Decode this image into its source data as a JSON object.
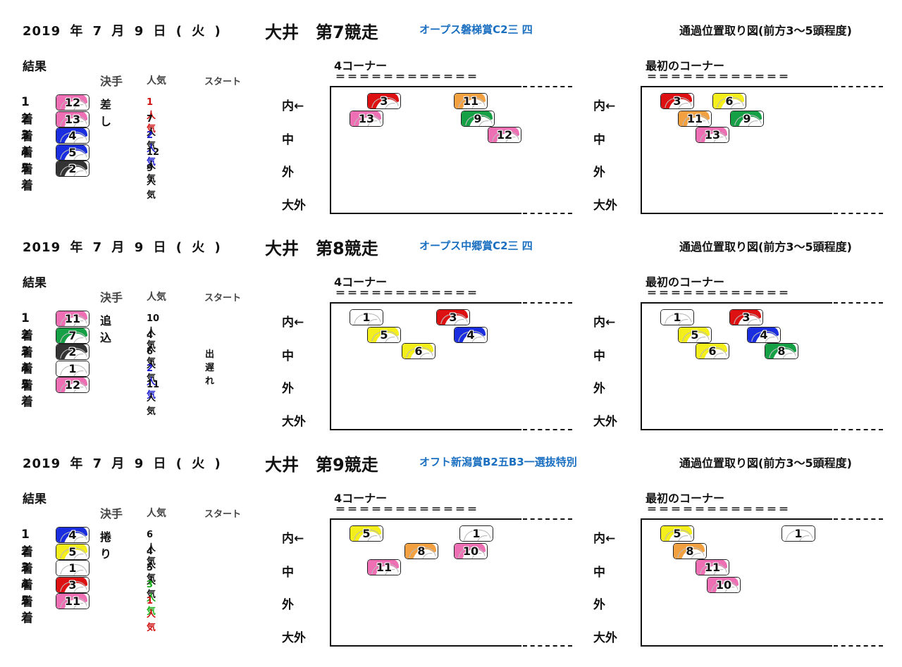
{
  "labels": {
    "result": "結果",
    "col_kimete": "決手",
    "col_ninki": "人気",
    "col_start": "スタート",
    "pass_title": "通過位置取り図(前方3～5頭程度)",
    "corner4": "4コーナー",
    "corner_first": "最初のコーナー",
    "equals": "＝＝＝＝＝＝＝＝＝＝＝＝",
    "lanes": [
      "内←",
      "中",
      "外",
      "大外"
    ]
  },
  "colors": {
    "pink": "#ee6fb4",
    "red": "#dd1111",
    "blue": "#1a2ee0",
    "yellow": "#f4ee1a",
    "green": "#16a045",
    "orange": "#f2a040",
    "black": "#333333",
    "white": "#ffffff",
    "ninki_red": "#d01010",
    "ninki_blue": "#1a1ad0",
    "ninki_green": "#18b018",
    "race_name": "#1a6fc0"
  },
  "races": [
    {
      "date": "2019 年 7 月 9 日 ( 火 )",
      "venue": "大井　第7競走",
      "name": "オープス磐梯賞C2三 四",
      "results": [
        {
          "rank": "1着",
          "num": "12",
          "color": "pink",
          "kimete": "差し",
          "ninki": "1人気",
          "ninki_color": "ninki_red",
          "start": ""
        },
        {
          "rank": "2着",
          "num": "13",
          "color": "pink",
          "kimete": "",
          "ninki": "7人気",
          "ninki_color": "",
          "start": ""
        },
        {
          "rank": "3着",
          "num": "4",
          "color": "blue",
          "kimete": "",
          "ninki": "2人気",
          "ninki_color": "ninki_blue",
          "start": ""
        },
        {
          "rank": "4着",
          "num": "5",
          "color": "blue",
          "kimete": "",
          "ninki": "12人気",
          "ninki_color": "",
          "start": ""
        },
        {
          "rank": "5着",
          "num": "2",
          "color": "black",
          "kimete": "",
          "ninki": "9人気",
          "ninki_color": "",
          "start": ""
        }
      ],
      "corner4": [
        {
          "num": "3",
          "color": "red",
          "along": 51,
          "lane": 0
        },
        {
          "num": "11",
          "color": "orange",
          "along": 174,
          "lane": 0
        },
        {
          "num": "13",
          "color": "pink",
          "along": 26,
          "lane": 1
        },
        {
          "num": "9",
          "color": "green",
          "along": 184,
          "lane": 1
        },
        {
          "num": "12",
          "color": "pink",
          "along": 222,
          "lane": 2
        }
      ],
      "corner_first": [
        {
          "num": "3",
          "color": "red",
          "along": 26,
          "lane": 0
        },
        {
          "num": "6",
          "color": "yellow",
          "along": 100,
          "lane": 0
        },
        {
          "num": "11",
          "color": "orange",
          "along": 51,
          "lane": 1
        },
        {
          "num": "9",
          "color": "green",
          "along": 125,
          "lane": 1
        },
        {
          "num": "13",
          "color": "pink",
          "along": 76,
          "lane": 2
        }
      ]
    },
    {
      "date": "2019 年 7 月 9 日 ( 火 )",
      "venue": "大井　第8競走",
      "name": "オープス中郷賞C2三 四",
      "results": [
        {
          "rank": "1着",
          "num": "11",
          "color": "pink",
          "kimete": "追込",
          "ninki": "10人気",
          "ninki_color": "",
          "start": ""
        },
        {
          "rank": "2着",
          "num": "7",
          "color": "green",
          "kimete": "",
          "ninki": "4人気",
          "ninki_color": "",
          "start": ""
        },
        {
          "rank": "3着",
          "num": "2",
          "color": "black",
          "kimete": "",
          "ninki": "6人気",
          "ninki_color": "",
          "start": "出遅れ"
        },
        {
          "rank": "4着",
          "num": "1",
          "color": "white",
          "kimete": "",
          "ninki": "2人気",
          "ninki_color": "ninki_blue",
          "start": ""
        },
        {
          "rank": "5着",
          "num": "12",
          "color": "pink",
          "kimete": "",
          "ninki": "11人気",
          "ninki_color": "",
          "start": ""
        }
      ],
      "corner4": [
        {
          "num": "1",
          "color": "white",
          "along": 26,
          "lane": 0
        },
        {
          "num": "3",
          "color": "red",
          "along": 149,
          "lane": 0
        },
        {
          "num": "5",
          "color": "yellow",
          "along": 51,
          "lane": 1
        },
        {
          "num": "4",
          "color": "blue",
          "along": 174,
          "lane": 1
        },
        {
          "num": "6",
          "color": "yellow",
          "along": 100,
          "lane": 2
        }
      ],
      "corner_first": [
        {
          "num": "1",
          "color": "white",
          "along": 26,
          "lane": 0
        },
        {
          "num": "3",
          "color": "red",
          "along": 124,
          "lane": 0
        },
        {
          "num": "5",
          "color": "yellow",
          "along": 51,
          "lane": 1
        },
        {
          "num": "4",
          "color": "blue",
          "along": 149,
          "lane": 1
        },
        {
          "num": "6",
          "color": "yellow",
          "along": 76,
          "lane": 2
        },
        {
          "num": "8",
          "color": "green",
          "along": 174,
          "lane": 2
        }
      ]
    },
    {
      "date": "2019 年 7 月 9 日 ( 火 )",
      "venue": "大井　第9競走",
      "name": "オフト新潟賞B2五B3一選抜特別",
      "results": [
        {
          "rank": "1着",
          "num": "4",
          "color": "blue",
          "kimete": "捲り",
          "ninki": "6人気",
          "ninki_color": "",
          "start": ""
        },
        {
          "rank": "2着",
          "num": "5",
          "color": "yellow",
          "kimete": "",
          "ninki": "4人気",
          "ninki_color": "",
          "start": ""
        },
        {
          "rank": "3着",
          "num": "1",
          "color": "white",
          "kimete": "",
          "ninki": "5人気",
          "ninki_color": "",
          "start": ""
        },
        {
          "rank": "4着",
          "num": "3",
          "color": "red",
          "kimete": "",
          "ninki": "3人気",
          "ninki_color": "ninki_green",
          "start": ""
        },
        {
          "rank": "5着",
          "num": "11",
          "color": "pink",
          "kimete": "",
          "ninki": "1人気",
          "ninki_color": "ninki_red",
          "start": ""
        }
      ],
      "corner4": [
        {
          "num": "5",
          "color": "yellow",
          "along": 26,
          "lane": 0
        },
        {
          "num": "1",
          "color": "white",
          "along": 182,
          "lane": 0
        },
        {
          "num": "8",
          "color": "orange",
          "along": 104,
          "lane": 1
        },
        {
          "num": "10",
          "color": "pink",
          "along": 174,
          "lane": 1
        },
        {
          "num": "11",
          "color": "pink",
          "along": 51,
          "lane": 2
        }
      ],
      "corner_first": [
        {
          "num": "5",
          "color": "yellow",
          "along": 26,
          "lane": 0
        },
        {
          "num": "1",
          "color": "white",
          "along": 198,
          "lane": 0
        },
        {
          "num": "8",
          "color": "orange",
          "along": 44,
          "lane": 1
        },
        {
          "num": "11",
          "color": "pink",
          "along": 76,
          "lane": 2
        },
        {
          "num": "10",
          "color": "pink",
          "along": 92,
          "lane": 3
        }
      ]
    }
  ]
}
